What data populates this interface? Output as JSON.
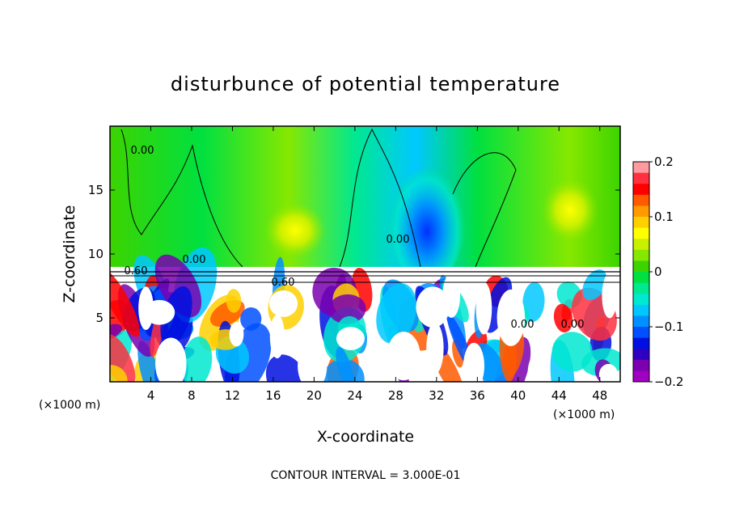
{
  "chart_data": {
    "type": "heatmap",
    "title": "disturbunce of potential temperature",
    "xlabel": "X-coordinate",
    "ylabel": "Z-coordinate",
    "x_unit": "(×1000 m)",
    "x_unit_right": "(×1000 m)",
    "xlim": [
      0,
      50
    ],
    "ylim": [
      0,
      20
    ],
    "x_ticks": [
      4,
      8,
      12,
      16,
      20,
      24,
      28,
      32,
      36,
      40,
      44,
      48
    ],
    "y_ticks": [
      5,
      10,
      15
    ],
    "colorbar": {
      "min": -0.2,
      "max": 0.2,
      "ticks": [
        0.2,
        0.1,
        0,
        -0.1,
        -0.2
      ],
      "tick_labels": [
        "0.2",
        "0.1",
        "0",
        "−0.1",
        "−0.2"
      ],
      "colors": [
        "#ff9aa0",
        "#ff3040",
        "#ff0000",
        "#ff5a00",
        "#ff9a00",
        "#ffd000",
        "#ffff00",
        "#c8f000",
        "#86e800",
        "#3cd400",
        "#00e040",
        "#00e890",
        "#00e8d0",
        "#00c8ff",
        "#0090ff",
        "#0050ff",
        "#0010e0",
        "#3000c0",
        "#7a00b0",
        "#a000c0"
      ]
    },
    "contour_labels": [
      "0.00",
      "0.00",
      "0.00",
      "0.60",
      "0.60",
      "0.00",
      "0.00"
    ],
    "contour_interval_text": "CONTOUR INTERVAL = 3.000E-01",
    "regions": [
      {
        "x": [
          0,
          50
        ],
        "z": [
          9,
          20
        ],
        "value": 0.0,
        "description_hidden": true
      }
    ]
  }
}
